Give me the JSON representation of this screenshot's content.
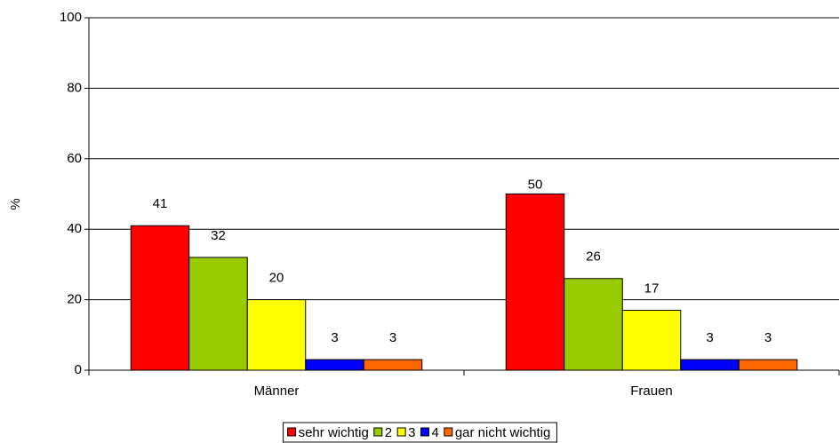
{
  "chart_data": {
    "type": "bar",
    "y_label": "%",
    "categories": [
      "Männer",
      "Frauen"
    ],
    "series": [
      {
        "name": "sehr wichtig",
        "color": "#ff0000",
        "values": [
          41,
          50
        ]
      },
      {
        "name": "2",
        "color": "#99cc00",
        "values": [
          32,
          26
        ]
      },
      {
        "name": "3",
        "color": "#ffff00",
        "values": [
          20,
          17
        ]
      },
      {
        "name": "4",
        "color": "#0000ff",
        "values": [
          3,
          3
        ]
      },
      {
        "name": "gar nicht wichtig",
        "color": "#ff6600",
        "values": [
          3,
          3
        ]
      }
    ],
    "ylim": [
      0,
      100
    ],
    "yticks": [
      0,
      20,
      40,
      60,
      80,
      100
    ],
    "grid": true,
    "legend": "bottom"
  }
}
